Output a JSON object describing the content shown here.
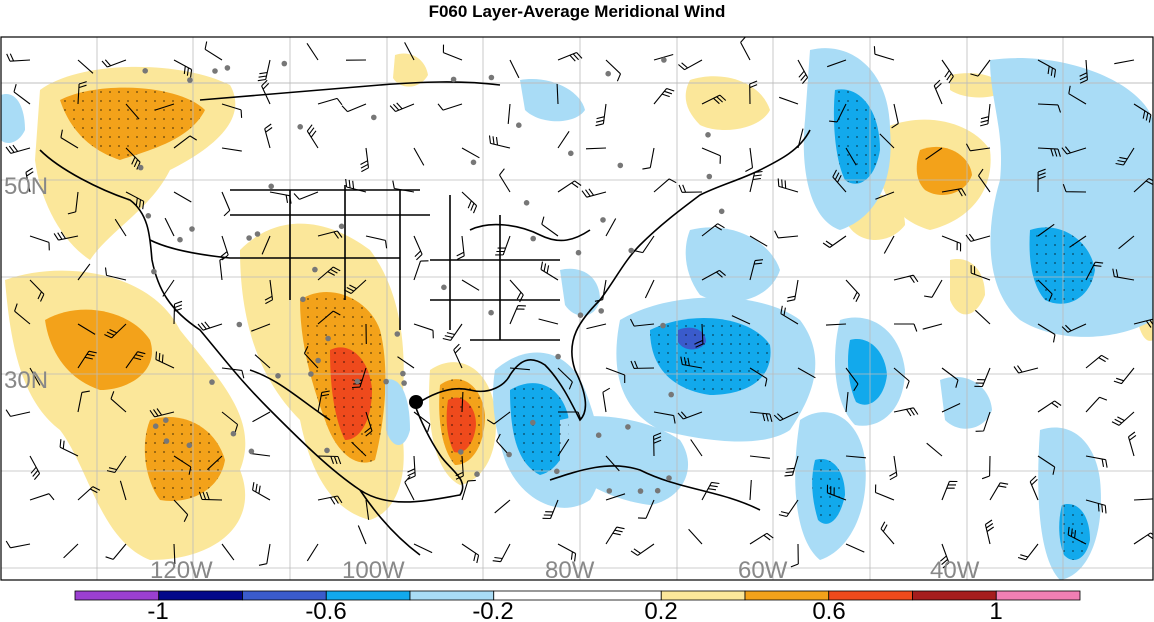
{
  "title": "F060 Layer-Average Meridional Wind",
  "map": {
    "lat_labels": [
      "50N",
      "30N"
    ],
    "lon_labels": [
      "120W",
      "100W",
      "80W",
      "60W",
      "40W"
    ],
    "storm_marker": "hurricane-center-dot"
  },
  "colorbar": {
    "segments": [
      {
        "from": -1.2,
        "to": -1.0,
        "color": "#9b3fd1"
      },
      {
        "from": -1.0,
        "to": -0.8,
        "color": "#02088a"
      },
      {
        "from": -0.8,
        "to": -0.6,
        "color": "#3a5bcc"
      },
      {
        "from": -0.6,
        "to": -0.4,
        "color": "#12a9ec"
      },
      {
        "from": -0.4,
        "to": -0.2,
        "color": "#a9dcf6"
      },
      {
        "from": -0.2,
        "to": 0.2,
        "color": "#ffffff"
      },
      {
        "from": 0.2,
        "to": 0.4,
        "color": "#fbe79a"
      },
      {
        "from": 0.4,
        "to": 0.6,
        "color": "#f3a21a"
      },
      {
        "from": 0.6,
        "to": 0.8,
        "color": "#ef4a1c"
      },
      {
        "from": 0.8,
        "to": 1.0,
        "color": "#a51d1d"
      },
      {
        "from": 1.0,
        "to": 1.2,
        "color": "#f07fb4"
      }
    ],
    "tick_labels": [
      "-1",
      "-0.6",
      "-0.2",
      "0.2",
      "0.6",
      "1"
    ]
  }
}
